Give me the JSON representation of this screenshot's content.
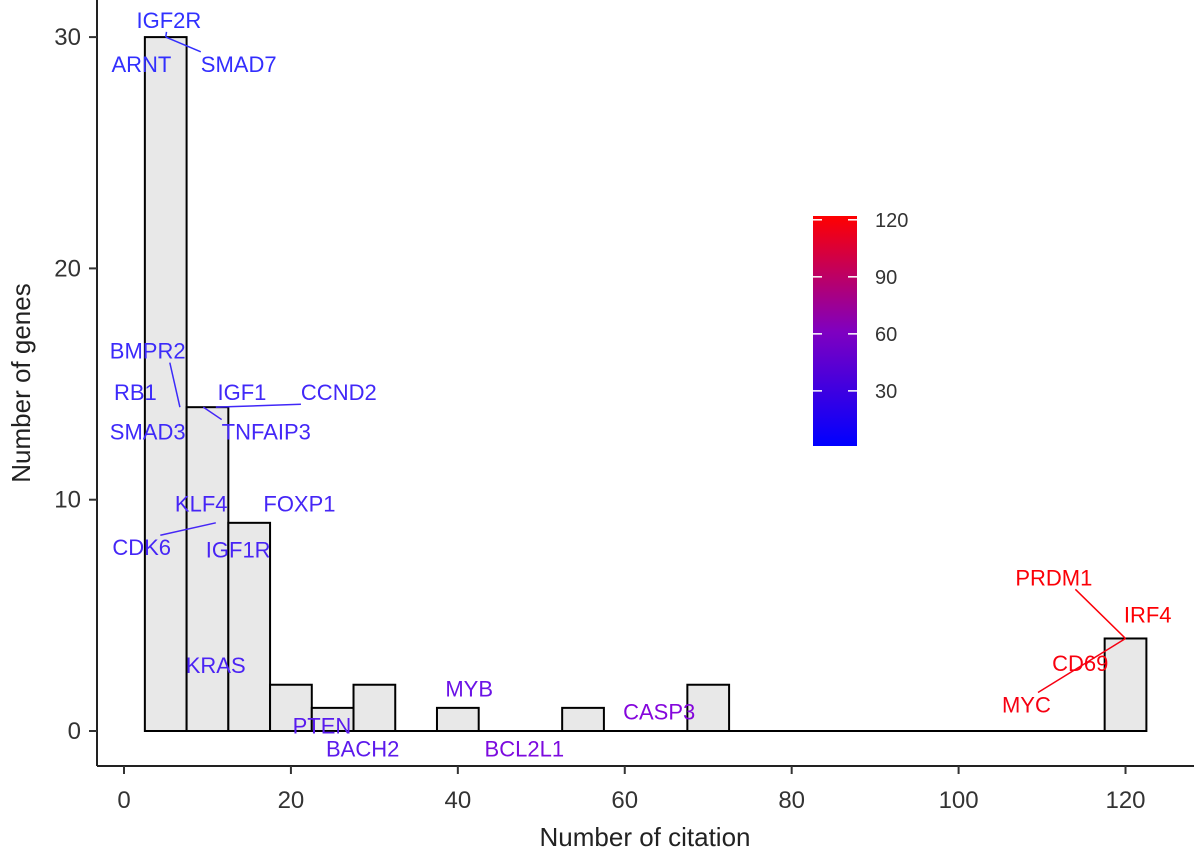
{
  "chart_data": {
    "type": "bar",
    "xlabel": "Number of citation",
    "ylabel": "Number of genes",
    "xlim": [
      -3.5,
      126
    ],
    "ylim": [
      -1.5,
      31.5
    ],
    "x_ticks": [
      0,
      20,
      40,
      60,
      80,
      100,
      120
    ],
    "y_ticks": [
      0,
      10,
      20,
      30
    ],
    "bin_width": 5,
    "bins": [
      {
        "center": 5,
        "count": 30
      },
      {
        "center": 10,
        "count": 14
      },
      {
        "center": 15,
        "count": 9
      },
      {
        "center": 20,
        "count": 2
      },
      {
        "center": 25,
        "count": 1
      },
      {
        "center": 30,
        "count": 2
      },
      {
        "center": 35,
        "count": 0
      },
      {
        "center": 40,
        "count": 1
      },
      {
        "center": 45,
        "count": 0
      },
      {
        "center": 50,
        "count": 0
      },
      {
        "center": 55,
        "count": 1
      },
      {
        "center": 60,
        "count": 0
      },
      {
        "center": 65,
        "count": 0
      },
      {
        "center": 70,
        "count": 2
      },
      {
        "center": 75,
        "count": 0
      },
      {
        "center": 80,
        "count": 0
      },
      {
        "center": 85,
        "count": 0
      },
      {
        "center": 90,
        "count": 0
      },
      {
        "center": 95,
        "count": 0
      },
      {
        "center": 100,
        "count": 0
      },
      {
        "center": 105,
        "count": 0
      },
      {
        "center": 110,
        "count": 0
      },
      {
        "center": 115,
        "count": 0
      },
      {
        "center": 120,
        "count": 4
      }
    ],
    "bar_fill": "#e8e8e8",
    "bar_stroke": "#000000",
    "gene_labels": [
      {
        "text": "IGF2R",
        "x": 1.5,
        "y": 30.4,
        "cite": 1,
        "anchor": "start",
        "point": [
          5,
          30
        ]
      },
      {
        "text": "ARNT",
        "x": -1.5,
        "y": 28.5,
        "cite": 2,
        "anchor": "start"
      },
      {
        "text": "SMAD7",
        "x": 9.2,
        "y": 28.5,
        "cite": 3,
        "anchor": "start",
        "point": [
          5,
          30
        ]
      },
      {
        "text": "BMPR2",
        "x": -1.7,
        "y": 16.1,
        "cite": 8,
        "anchor": "start",
        "point": [
          6.7,
          14
        ]
      },
      {
        "text": "RB1",
        "x": -1.2,
        "y": 14.3,
        "cite": 9,
        "anchor": "start"
      },
      {
        "text": "IGF1",
        "x": 11.2,
        "y": 14.3,
        "cite": 11,
        "anchor": "start"
      },
      {
        "text": "CCND2",
        "x": 21.2,
        "y": 14.3,
        "cite": 12,
        "anchor": "start",
        "point": [
          11,
          14
        ]
      },
      {
        "text": "SMAD3",
        "x": -1.7,
        "y": 12.6,
        "cite": 10,
        "anchor": "start"
      },
      {
        "text": "TNFAIP3",
        "x": 11.7,
        "y": 12.6,
        "cite": 13,
        "anchor": "start",
        "point": [
          9.5,
          14
        ]
      },
      {
        "text": "KLF4",
        "x": 6.1,
        "y": 9.5,
        "cite": 15,
        "anchor": "start"
      },
      {
        "text": "FOXP1",
        "x": 16.7,
        "y": 9.5,
        "cite": 14,
        "anchor": "start"
      },
      {
        "text": "CDK6",
        "x": -1.4,
        "y": 7.6,
        "cite": 14,
        "anchor": "start",
        "point": [
          11,
          9
        ]
      },
      {
        "text": "IGF1R",
        "x": 9.8,
        "y": 7.5,
        "cite": 16,
        "anchor": "start"
      },
      {
        "text": "KRAS",
        "x": 7.4,
        "y": 2.5,
        "cite": 18,
        "anchor": "start"
      },
      {
        "text": "MYB",
        "x": 38.5,
        "y": 1.5,
        "cite": 38,
        "anchor": "start"
      },
      {
        "text": "CASP3",
        "x": 59.8,
        "y": 0.5,
        "cite": 54,
        "anchor": "start"
      },
      {
        "text": "PTEN",
        "x": 20.2,
        "y": -0.1,
        "cite": 27,
        "anchor": "start"
      },
      {
        "text": "BACH2",
        "x": 24.2,
        "y": -1.1,
        "cite": 29,
        "anchor": "start"
      },
      {
        "text": "BCL2L1",
        "x": 43.2,
        "y": -1.1,
        "cite": 49,
        "anchor": "start"
      },
      {
        "text": "PRDM1",
        "x": 106.8,
        "y": 6.3,
        "cite": 120,
        "anchor": "start",
        "point": [
          120,
          4
        ]
      },
      {
        "text": "IRF4",
        "x": 119.8,
        "y": 4.7,
        "cite": 121,
        "anchor": "start"
      },
      {
        "text": "CD69",
        "x": 111.2,
        "y": 2.6,
        "cite": 118,
        "anchor": "start"
      },
      {
        "text": "MYC",
        "x": 105.2,
        "y": 0.8,
        "cite": 117,
        "anchor": "start",
        "point": [
          120,
          4
        ]
      }
    ],
    "colorbar": {
      "ticks": [
        30,
        60,
        90,
        120
      ],
      "min": 1,
      "max": 122,
      "low_color": "#0000ff",
      "high_color": "#ff0000"
    }
  }
}
